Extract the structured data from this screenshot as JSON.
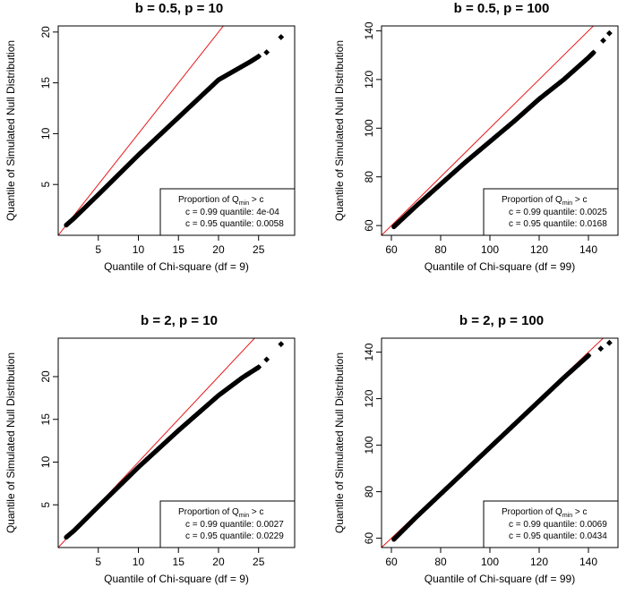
{
  "colors": {
    "reference_line": "#e8191a",
    "points": "#000000",
    "frame": "#000000",
    "background": "#ffffff"
  },
  "chart_data": [
    {
      "type": "scatter",
      "title": "b = 0.5, p = 10",
      "xlabel": "Quantile of Chi-square (df = 9)",
      "ylabel": "Quantile of Simulated Null Distribution",
      "xlim": [
        0,
        29.5
      ],
      "ylim": [
        0,
        20.6
      ],
      "xticks": [
        5,
        10,
        15,
        20,
        25
      ],
      "yticks": [
        5,
        10,
        15,
        20
      ],
      "reference_line": "y = x",
      "series": [
        {
          "x": [
            1,
            2,
            5,
            10,
            15,
            20,
            24,
            25,
            26,
            27.8
          ],
          "y": [
            1,
            1.7,
            4,
            7.9,
            11.6,
            15.3,
            17.1,
            17.6,
            18,
            19.5
          ]
        }
      ],
      "legend": {
        "position": "bottom-right",
        "header_pre": "Proportion of Q",
        "header_sub": "min",
        "header_post": " > c",
        "lines": [
          "c = 0.99 quantile: 4e-04",
          "c = 0.95 quantile: 0.0058"
        ]
      }
    },
    {
      "type": "scatter",
      "title": "b = 0.5, p = 100",
      "xlabel": "Quantile of Chi-square (df = 99)",
      "ylabel": "Quantile of Simulated Null Distribution",
      "xlim": [
        56,
        152
      ],
      "ylim": [
        56,
        142
      ],
      "xticks": [
        60,
        80,
        100,
        120,
        140
      ],
      "yticks": [
        60,
        80,
        100,
        120,
        140
      ],
      "reference_line": "y = x",
      "series": [
        {
          "x": [
            61,
            70,
            80,
            90,
            100,
            110,
            120,
            130,
            140,
            142,
            146,
            148.5
          ],
          "y": [
            59.5,
            68,
            77,
            86,
            94.5,
            103,
            112,
            120,
            129,
            131,
            136,
            139
          ]
        }
      ],
      "legend": {
        "position": "bottom-right",
        "header_pre": "Proportion of Q",
        "header_sub": "min",
        "header_post": " > c",
        "lines": [
          "c = 0.99 quantile: 0.0025",
          "c = 0.95 quantile: 0.0168"
        ]
      }
    },
    {
      "type": "scatter",
      "title": "b = 2, p = 10",
      "xlabel": "Quantile of Chi-square (df = 9)",
      "ylabel": "Quantile of Simulated Null Distribution",
      "xlim": [
        0,
        29.5
      ],
      "ylim": [
        0,
        24.5
      ],
      "xticks": [
        5,
        10,
        15,
        20,
        25
      ],
      "yticks": [
        5,
        10,
        15,
        20
      ],
      "reference_line": "y = x",
      "series": [
        {
          "x": [
            1,
            2,
            5,
            10,
            15,
            20,
            23,
            25,
            26,
            27.8
          ],
          "y": [
            1.2,
            2,
            4.8,
            9.4,
            13.7,
            17.8,
            19.9,
            21.1,
            22,
            23.8
          ]
        }
      ],
      "legend": {
        "position": "bottom-right",
        "header_pre": "Proportion of Q",
        "header_sub": "min",
        "header_post": " > c",
        "lines": [
          "c = 0.99 quantile: 0.0027",
          "c = 0.95 quantile: 0.0229"
        ]
      }
    },
    {
      "type": "scatter",
      "title": "b = 2, p = 100",
      "xlabel": "Quantile of Chi-square (df = 99)",
      "ylabel": "Quantile of Simulated Null Distribution",
      "xlim": [
        56,
        152
      ],
      "ylim": [
        56,
        146
      ],
      "xticks": [
        60,
        80,
        100,
        120,
        140
      ],
      "yticks": [
        60,
        80,
        100,
        120,
        140
      ],
      "reference_line": "y = x",
      "series": [
        {
          "x": [
            61,
            70,
            80,
            90,
            100,
            110,
            120,
            130,
            140,
            145,
            148.5
          ],
          "y": [
            59.5,
            69,
            79,
            89,
            99,
            109,
            119,
            129,
            138.5,
            141.5,
            144
          ]
        }
      ],
      "legend": {
        "position": "bottom-right",
        "header_pre": "Proportion of Q",
        "header_sub": "min",
        "header_post": " > c",
        "lines": [
          "c = 0.99 quantile: 0.0069",
          "c = 0.95 quantile: 0.0434"
        ]
      }
    }
  ]
}
